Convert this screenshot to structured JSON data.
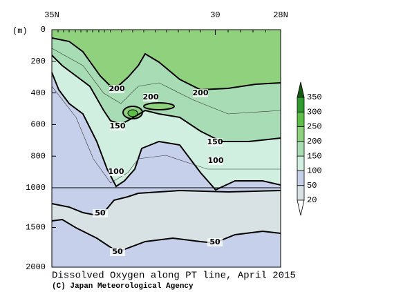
{
  "chart_data": {
    "type": "contour",
    "title": "Dissolved Oxygen along PT line, April 2015",
    "subtitle": "(C) Japan Meteorological Agency",
    "y_label": "(m)",
    "xlim": [
      35,
      28
    ],
    "xticks": [
      {
        "value": 35,
        "label": "35N"
      },
      {
        "value": 30,
        "label": "30"
      },
      {
        "value": 28,
        "label": "28N"
      }
    ],
    "ylim": [
      0,
      2000
    ],
    "yticks": [
      0,
      200,
      400,
      600,
      800,
      1000,
      1500,
      2000
    ],
    "colorbar": {
      "levels": [
        20,
        50,
        100,
        150,
        200,
        250,
        300,
        350
      ],
      "colors": [
        "#ffffff",
        "#d8e2e4",
        "#c6d0ea",
        "#d0efe0",
        "#a7dcb5",
        "#8fd17c",
        "#5dbf48",
        "#2e9b2e",
        "#145a14"
      ]
    },
    "contour_labels": [
      200,
      200,
      200,
      150,
      150,
      100,
      100,
      50,
      50,
      50
    ]
  }
}
